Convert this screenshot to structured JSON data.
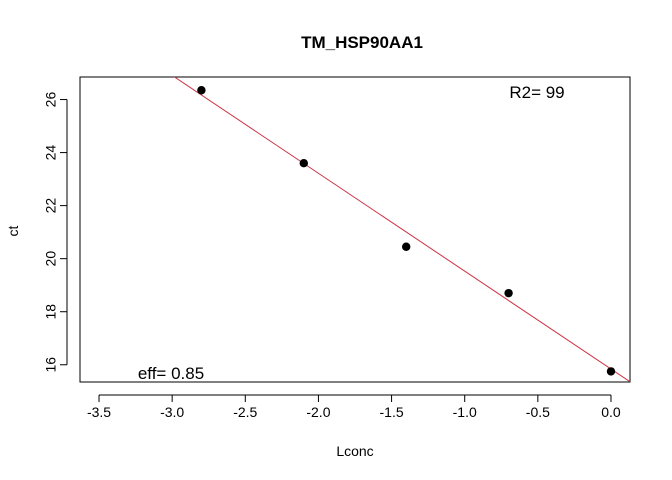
{
  "chart_data": {
    "type": "scatter",
    "title": "TM_HSP90AA1",
    "xlabel": "Lconc",
    "ylabel": "ct",
    "xlim": [
      -3.63,
      0.13
    ],
    "ylim": [
      15.35,
      26.85
    ],
    "x_ticks": [
      -3.5,
      -3.0,
      -2.5,
      -2.0,
      -1.5,
      -1.0,
      -0.5,
      0.0
    ],
    "x_tick_labels": [
      "-3.5",
      "-3.0",
      "-2.5",
      "-2.0",
      "-1.5",
      "-1.0",
      "-0.5",
      "0.0"
    ],
    "y_ticks": [
      16,
      18,
      20,
      22,
      24,
      26
    ],
    "y_tick_labels": [
      "16",
      "18",
      "20",
      "22",
      "24",
      "26"
    ],
    "grid": false,
    "points": [
      {
        "x": -2.8,
        "y": 26.35
      },
      {
        "x": -2.1,
        "y": 23.6
      },
      {
        "x": -1.4,
        "y": 20.45
      },
      {
        "x": -0.7,
        "y": 18.7
      },
      {
        "x": 0.0,
        "y": 15.75
      }
    ],
    "fit_line": {
      "slope": -3.69,
      "intercept": 15.84,
      "color": "#cc3344"
    },
    "point_color": "#000000",
    "annotations": {
      "r2": "R2= 99",
      "eff": "eff= 0.85"
    }
  }
}
